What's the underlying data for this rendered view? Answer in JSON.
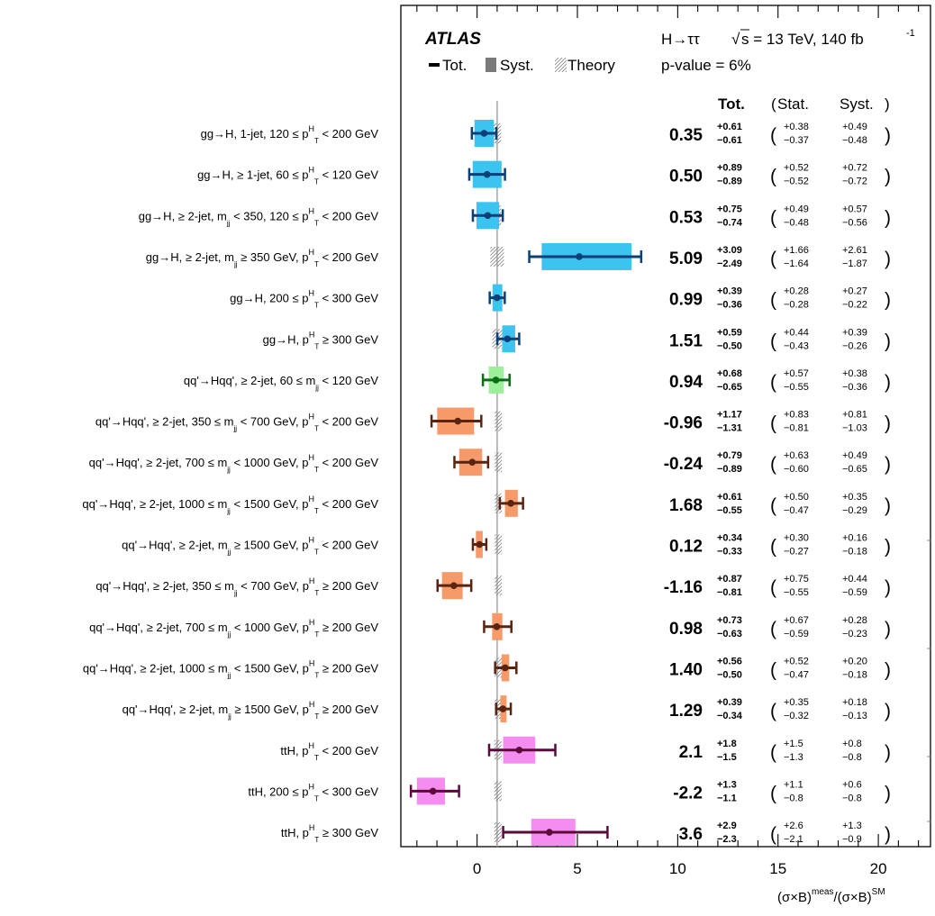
{
  "chart_data": {
    "type": "forest",
    "experiment": "ATLAS",
    "process": "H→ττ",
    "energy_prefix": "√",
    "energy_label": "s = 13 TeV, 140 fb",
    "lumi_sup": "-1",
    "pvalue": "p-value = 6%",
    "legend": {
      "tot": "Tot.",
      "syst": "Syst.",
      "theory": "Theory"
    },
    "headers": {
      "tot": "Tot.",
      "open": "(",
      "stat": "Stat.",
      "syst": "Syst.",
      "close": ")"
    },
    "xaxis": {
      "label": "(σ×B)",
      "sup1": "meas",
      "label2": "/(σ×B)",
      "sup2": "SM",
      "min": -3.8,
      "max": 22.6,
      "ticks": [
        0,
        5,
        10,
        15,
        20
      ]
    },
    "sm_value": 1.0,
    "categories": [
      {
        "pre": "gg→H, 1-jet, 120 ≤ p",
        "sup": "H",
        "sub": "T",
        "post": " < 200 GeV",
        "val": 0.35,
        "tot": [
          "+0.61",
          "−0.61"
        ],
        "stat": [
          "+0.38",
          "−0.37"
        ],
        "syst": [
          "+0.49",
          "−0.48"
        ],
        "group": "gg",
        "theory": 0.07
      },
      {
        "pre": "gg→H, ≥ 1-jet, 60 ≤ p",
        "sup": "H",
        "sub": "T",
        "post": " < 120 GeV",
        "val": 0.5,
        "tot": [
          "+0.89",
          "−0.89"
        ],
        "stat": [
          "+0.52",
          "−0.52"
        ],
        "syst": [
          "+0.72",
          "−0.72"
        ],
        "group": "gg",
        "theory": 0.06
      },
      {
        "pre": "gg→H, ≥ 2-jet, m",
        "sup": "",
        "sub": "jj",
        "post": " < 350, 120 ≤ p",
        "sup2": "H",
        "sub2": "T",
        "post2": " < 200 GeV",
        "val": 0.53,
        "tot": [
          "+0.75",
          "−0.74"
        ],
        "stat": [
          "+0.49",
          "−0.48"
        ],
        "syst": [
          "+0.57",
          "−0.56"
        ],
        "group": "gg",
        "theory": 0.07
      },
      {
        "pre": "gg→H, ≥ 2-jet, m",
        "sup": "",
        "sub": "jj",
        "post": " ≥ 350 GeV, p",
        "sup2": "H",
        "sub2": "T",
        "post2": " < 200 GeV",
        "val": 5.09,
        "tot": [
          "+3.09",
          "−2.49"
        ],
        "stat": [
          "+1.66",
          "−1.64"
        ],
        "syst": [
          "+2.61",
          "−1.87"
        ],
        "group": "gg",
        "theory": 0.25
      },
      {
        "pre": "gg→H, 200 ≤ p",
        "sup": "H",
        "sub": "T",
        "post": " < 300 GeV",
        "val": 0.99,
        "tot": [
          "+0.39",
          "−0.36"
        ],
        "stat": [
          "+0.28",
          "−0.28"
        ],
        "syst": [
          "+0.27",
          "−0.22"
        ],
        "group": "gg",
        "theory": 0.05
      },
      {
        "pre": "gg→H, p",
        "sup": "H",
        "sub": "T",
        "post": " ≥ 300 GeV",
        "val": 1.51,
        "tot": [
          "+0.59",
          "−0.50"
        ],
        "stat": [
          "+0.44",
          "−0.43"
        ],
        "syst": [
          "+0.39",
          "−0.26"
        ],
        "group": "gg",
        "theory": 0.15
      },
      {
        "pre": "qq'→Hqq', ≥ 2-jet, 60 ≤ m",
        "sup": "",
        "sub": "jj",
        "post": " < 120 GeV",
        "val": 0.94,
        "tot": [
          "+0.68",
          "−0.65"
        ],
        "stat": [
          "+0.57",
          "−0.55"
        ],
        "syst": [
          "+0.38",
          "−0.36"
        ],
        "group": "vh",
        "theory": 0.05
      },
      {
        "pre": "qq'→Hqq', ≥ 2-jet, 350 ≤ m",
        "sup": "",
        "sub": "jj",
        "post": " < 700 GeV, p",
        "sup2": "H",
        "sub2": "T",
        "post2": " < 200 GeV",
        "val": -0.96,
        "tot": [
          "+1.17",
          "−1.31"
        ],
        "stat": [
          "+0.83",
          "−0.81"
        ],
        "syst": [
          "+0.81",
          "−1.03"
        ],
        "group": "vbf",
        "theory": 0.03
      },
      {
        "pre": "qq'→Hqq', ≥ 2-jet, 700 ≤ m",
        "sup": "",
        "sub": "jj",
        "post": " < 1000 GeV, p",
        "sup2": "H",
        "sub2": "T",
        "post2": " < 200 GeV",
        "val": -0.24,
        "tot": [
          "+0.79",
          "−0.89"
        ],
        "stat": [
          "+0.63",
          "−0.60"
        ],
        "syst": [
          "+0.49",
          "−0.65"
        ],
        "group": "vbf",
        "theory": 0.03
      },
      {
        "pre": "qq'→Hqq', ≥ 2-jet, 1000 ≤ m",
        "sup": "",
        "sub": "jj",
        "post": " < 1500 GeV, p",
        "sup2": "H",
        "sub2": "T",
        "post2": " < 200 GeV",
        "val": 1.68,
        "tot": [
          "+0.61",
          "−0.55"
        ],
        "stat": [
          "+0.50",
          "−0.47"
        ],
        "syst": [
          "+0.35",
          "−0.29"
        ],
        "group": "vbf",
        "theory": 0.03
      },
      {
        "pre": "qq'→Hqq', ≥ 2-jet, m",
        "sup": "",
        "sub": "jj",
        "post": " ≥ 1500 GeV, p",
        "sup2": "H",
        "sub2": "T",
        "post2": " < 200 GeV",
        "val": 0.12,
        "tot": [
          "+0.34",
          "−0.33"
        ],
        "stat": [
          "+0.30",
          "−0.27"
        ],
        "syst": [
          "+0.16",
          "−0.18"
        ],
        "group": "vbf",
        "theory": 0.03
      },
      {
        "pre": "qq'→Hqq', ≥ 2-jet, 350 ≤ m",
        "sup": "",
        "sub": "jj",
        "post": " < 700 GeV, p",
        "sup2": "H",
        "sub2": "T",
        "post2": " ≥ 200 GeV",
        "val": -1.16,
        "tot": [
          "+0.87",
          "−0.81"
        ],
        "stat": [
          "+0.75",
          "−0.55"
        ],
        "syst": [
          "+0.44",
          "−0.59"
        ],
        "group": "vbf",
        "theory": 0.03
      },
      {
        "pre": "qq'→Hqq', ≥ 2-jet, 700 ≤ m",
        "sup": "",
        "sub": "jj",
        "post": " < 1000 GeV, p",
        "sup2": "H",
        "sub2": "T",
        "post2": " ≥ 200 GeV",
        "val": 0.98,
        "tot": [
          "+0.73",
          "−0.63"
        ],
        "stat": [
          "+0.67",
          "−0.59"
        ],
        "syst": [
          "+0.28",
          "−0.23"
        ],
        "group": "vbf",
        "theory": 0.03
      },
      {
        "pre": "qq'→Hqq', ≥ 2-jet, 1000 ≤ m",
        "sup": "",
        "sub": "jj",
        "post": " < 1500 GeV, p",
        "sup2": "H",
        "sub2": "T",
        "post2": " ≥ 200 GeV",
        "val": 1.4,
        "tot": [
          "+0.56",
          "−0.50"
        ],
        "stat": [
          "+0.52",
          "−0.47"
        ],
        "syst": [
          "+0.20",
          "−0.18"
        ],
        "group": "vbf",
        "theory": 0.03
      },
      {
        "pre": "qq'→Hqq', ≥ 2-jet, m",
        "sup": "",
        "sub": "jj",
        "post": " ≥ 1500 GeV, p",
        "sup2": "H",
        "sub2": "T",
        "post2": " ≥ 200 GeV",
        "val": 1.29,
        "tot": [
          "+0.39",
          "−0.34"
        ],
        "stat": [
          "+0.35",
          "−0.32"
        ],
        "syst": [
          "+0.18",
          "−0.13"
        ],
        "group": "vbf",
        "theory": 0.03
      },
      {
        "pre": "ttH, p",
        "sup": "H",
        "sub": "T",
        "post": " < 200 GeV",
        "val": 2.1,
        "tot": [
          "+1.8",
          "−1.5"
        ],
        "stat": [
          "+1.5",
          "−1.3"
        ],
        "syst": [
          "+0.8",
          "−0.8"
        ],
        "group": "tth",
        "theory": 0.05
      },
      {
        "pre": "ttH, 200 ≤ p",
        "sup": "H",
        "sub": "T",
        "post": " < 300 GeV",
        "val": -2.2,
        "tot": [
          "+1.3",
          "−1.1"
        ],
        "stat": [
          "+1.1",
          "−0.8"
        ],
        "syst": [
          "+0.6",
          "−0.8"
        ],
        "group": "tth",
        "theory": 0.05
      },
      {
        "pre": "ttH, p",
        "sup": "H",
        "sub": "T",
        "post": " ≥ 300 GeV",
        "val": 3.6,
        "tot": [
          "+2.9",
          "−2.3"
        ],
        "stat": [
          "+2.6",
          "−2.1"
        ],
        "syst": [
          "+1.3",
          "−0.9"
        ],
        "group": "tth",
        "theory": 0.05
      }
    ],
    "colors": {
      "gg": {
        "box": "#3cc3f0",
        "bar": "#0a3f78"
      },
      "vh": {
        "box": "#9df09a",
        "bar": "#0a6e14"
      },
      "vbf": {
        "box": "#f59a68",
        "bar": "#5a2410"
      },
      "tth": {
        "box": "#f58cf0",
        "bar": "#5c0a3c"
      },
      "sm_line": "#a6a6a6",
      "legend_syst": "#7a7a7a"
    }
  }
}
